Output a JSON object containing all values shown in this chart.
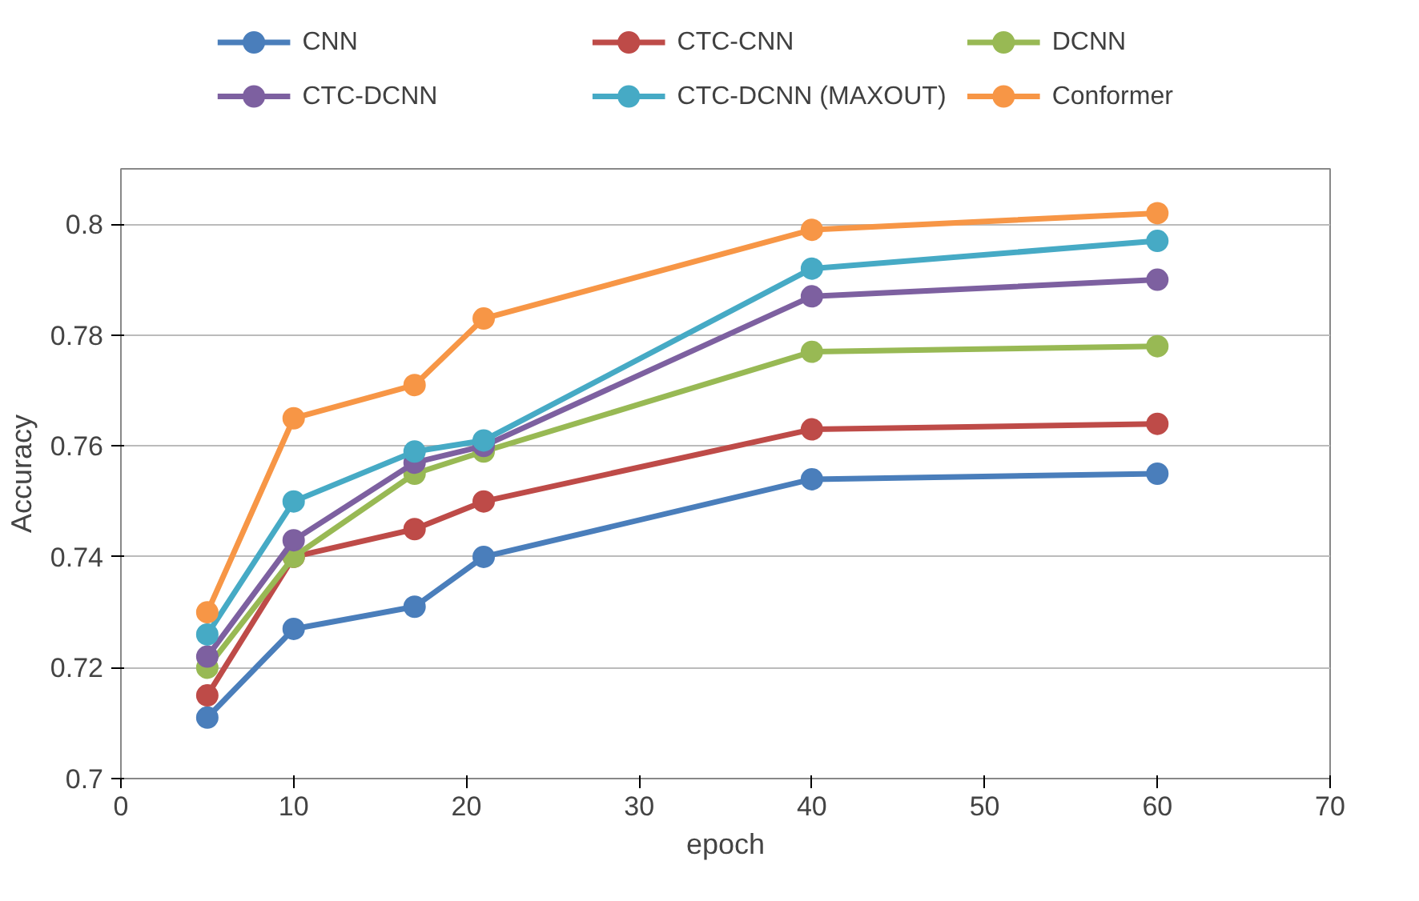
{
  "chart_data": {
    "type": "line",
    "xlabel": "epoch",
    "ylabel": "Accuracy",
    "x": [
      5,
      10,
      17,
      21,
      40,
      60
    ],
    "xlim": [
      0,
      70
    ],
    "xticks": [
      0,
      10,
      20,
      30,
      40,
      50,
      60,
      70
    ],
    "ylim": [
      0.7,
      0.81
    ],
    "yticks": [
      0.7,
      0.72,
      0.74,
      0.76,
      0.78,
      0.8
    ],
    "grid": "y",
    "legend": "top",
    "marker": "circle",
    "line_style": "solid",
    "series": [
      {
        "name": "CNN",
        "color": "#4a7ebb",
        "values": [
          0.711,
          0.727,
          0.731,
          0.74,
          0.754,
          0.755
        ]
      },
      {
        "name": "CTC-CNN",
        "color": "#be4b48",
        "values": [
          0.715,
          0.74,
          0.745,
          0.75,
          0.763,
          0.764
        ]
      },
      {
        "name": "DCNN",
        "color": "#98b954",
        "values": [
          0.72,
          0.74,
          0.755,
          0.759,
          0.777,
          0.778
        ]
      },
      {
        "name": "CTC-DCNN",
        "color": "#7d60a0",
        "values": [
          0.722,
          0.743,
          0.757,
          0.76,
          0.787,
          0.79
        ]
      },
      {
        "name": "CTC-DCNN (MAXOUT)",
        "color": "#46aac5",
        "values": [
          0.726,
          0.75,
          0.759,
          0.761,
          0.792,
          0.797
        ]
      },
      {
        "name": "Conformer",
        "color": "#f79646",
        "values": [
          0.73,
          0.765,
          0.771,
          0.783,
          0.799,
          0.802
        ]
      }
    ]
  }
}
